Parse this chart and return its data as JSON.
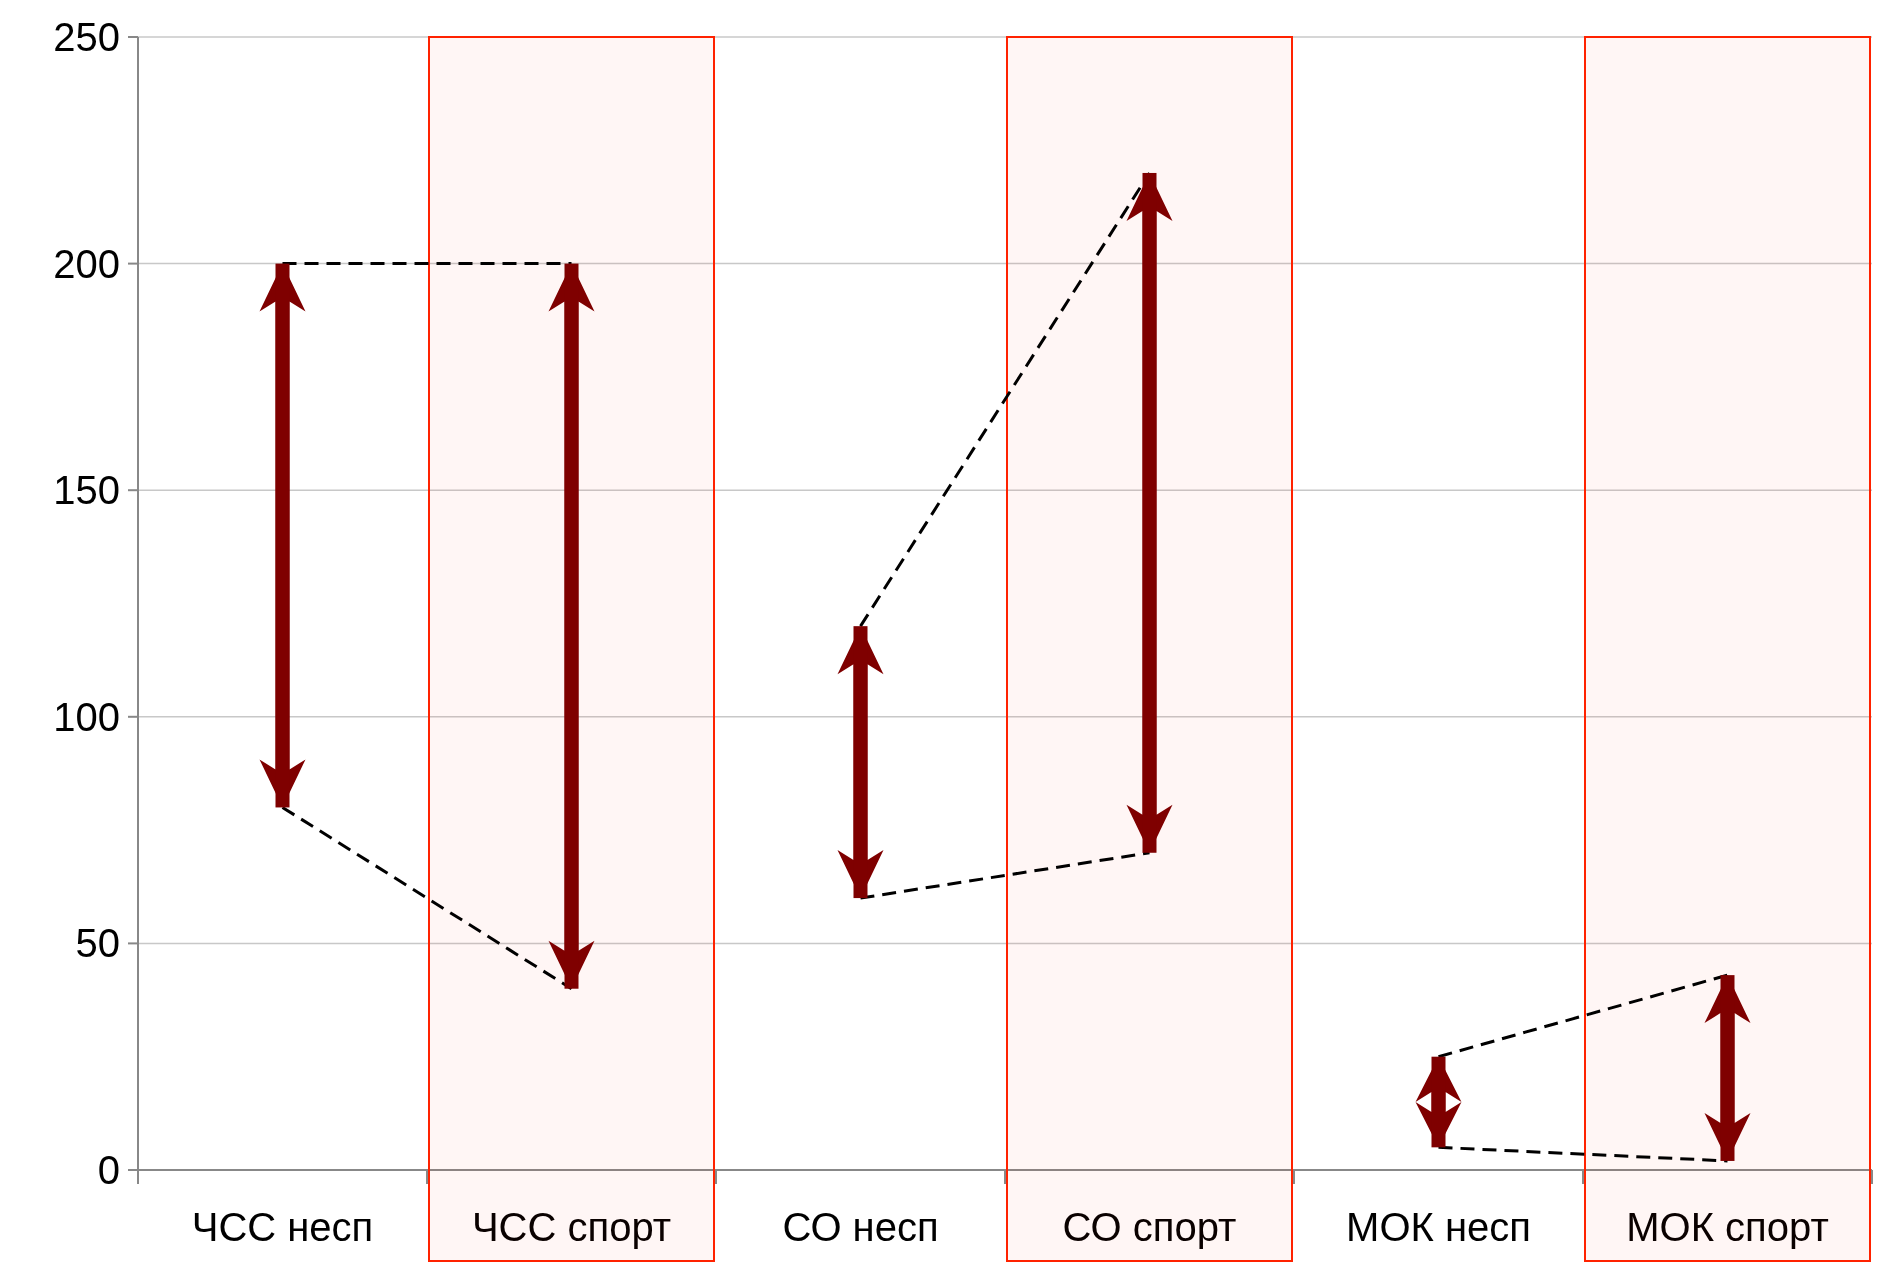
{
  "chart_data": {
    "type": "bar",
    "categories": [
      "ЧСС несп",
      "ЧСС спорт",
      "СО несп",
      "СО спорт",
      "МОК несп",
      "МОК спорт"
    ],
    "values": [
      120,
      160,
      60,
      150,
      20,
      41
    ],
    "base": [
      80,
      40,
      60,
      70,
      5,
      2
    ],
    "color": "#7f0000",
    "ylim": [
      0,
      250
    ],
    "yticks": [
      0,
      50,
      100,
      150,
      200,
      250
    ],
    "grid": "y",
    "series": [
      {
        "type": "line",
        "color": "#000000",
        "line_style": "dashed",
        "values": [
          200,
          200,
          null,
          null,
          null,
          null
        ]
      },
      {
        "type": "line",
        "color": "#000000",
        "line_style": "dashed",
        "values": [
          80,
          40,
          null,
          null,
          null,
          null
        ]
      },
      {
        "type": "line",
        "color": "#000000",
        "line_style": "dashed",
        "values": [
          null,
          null,
          120,
          220,
          null,
          null
        ]
      },
      {
        "type": "line",
        "color": "#000000",
        "line_style": "dashed",
        "values": [
          null,
          null,
          60,
          70,
          null,
          null
        ]
      },
      {
        "type": "line",
        "color": "#000000",
        "line_style": "dashed",
        "values": [
          null,
          null,
          null,
          null,
          25,
          43
        ]
      },
      {
        "type": "line",
        "color": "#000000",
        "line_style": "dashed",
        "values": [
          null,
          null,
          null,
          null,
          5,
          2
        ]
      }
    ],
    "bands": [
      {
        "axis": "x",
        "from": "ЧСС спорт",
        "to": "ЧСС спорт",
        "color": "#ff2200"
      },
      {
        "axis": "x",
        "from": "СО спорт",
        "to": "СО спорт",
        "color": "#ff2200"
      },
      {
        "axis": "x",
        "from": "МОК спорт",
        "to": "МОК спорт",
        "color": "#ff2200"
      }
    ]
  }
}
